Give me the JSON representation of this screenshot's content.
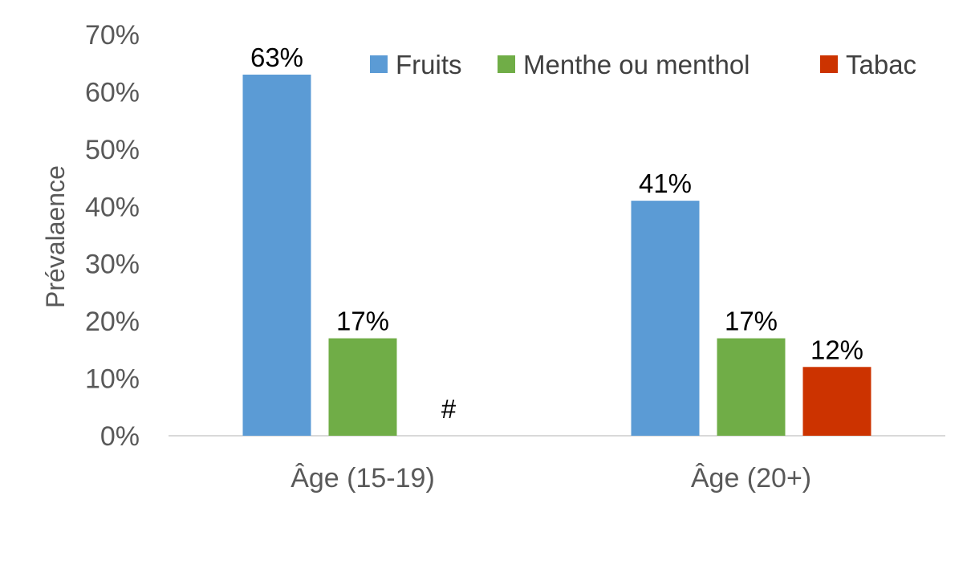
{
  "chart_data": {
    "type": "bar",
    "categories": [
      "Âge (15-19)",
      "Âge (20+)"
    ],
    "series": [
      {
        "name": "Fruits",
        "color": "#5B9BD5",
        "values": [
          63,
          41
        ],
        "labels": [
          "63%",
          "41%"
        ]
      },
      {
        "name": "Menthe ou menthol",
        "color": "#70AD47",
        "values": [
          17,
          17
        ],
        "labels": [
          "17%",
          "17%"
        ]
      },
      {
        "name": "Tabac",
        "color": "#CC3300",
        "values": [
          null,
          12
        ],
        "labels": [
          "#",
          "12%"
        ]
      }
    ],
    "title": "",
    "xlabel": "",
    "ylabel": "Prévalaence",
    "ylim": [
      0,
      70
    ],
    "yticks": [
      0,
      10,
      20,
      30,
      40,
      50,
      60,
      70
    ],
    "ytick_labels": [
      "0%",
      "10%",
      "20%",
      "30%",
      "40%",
      "50%",
      "60%",
      "70%"
    ],
    "legend": "top-right",
    "grid": false
  }
}
